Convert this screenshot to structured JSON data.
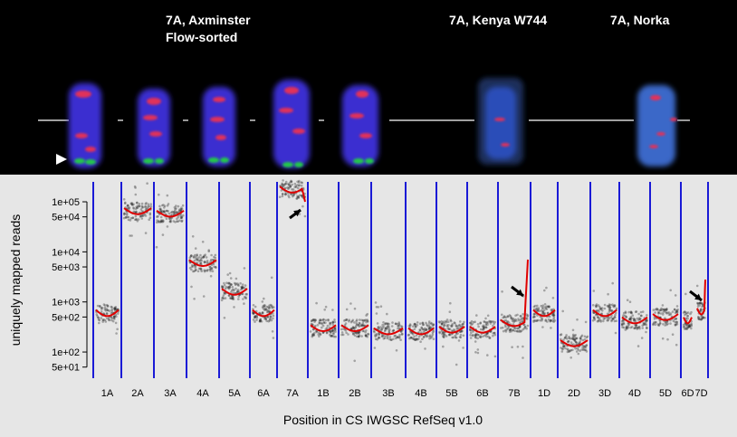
{
  "panel_titles": {
    "axminster_line1": "7A, Axminster",
    "axminster_line2": "Flow-sorted",
    "kenya": "7A, Kenya W744",
    "norka": "7A, Norka"
  },
  "colors": {
    "chromosome_body": "#3a2fd0",
    "fish_signal_red": "#e0305a",
    "fish_signal_green": "#22c84a",
    "divider_line": "#1a1ad6",
    "trend_line": "#e00000",
    "points": "#222222",
    "plot_background": "#e6e6e6",
    "image_background": "#000000"
  },
  "chart_data": {
    "type": "scatter",
    "ylabel": "uniquely mapped reads",
    "xlabel": "Position in CS IWGSC RefSeq v1.0",
    "y_scale": "log",
    "ylim": [
      30,
      250000
    ],
    "yticks": [
      {
        "label": "1e+05",
        "value": 100000
      },
      {
        "label": "5e+04",
        "value": 50000
      },
      {
        "label": "1e+04",
        "value": 10000
      },
      {
        "label": "5e+03",
        "value": 5000
      },
      {
        "label": "1e+03",
        "value": 1000
      },
      {
        "label": "5e+02",
        "value": 500
      },
      {
        "label": "1e+02",
        "value": 100
      },
      {
        "label": "5e+01",
        "value": 50
      }
    ],
    "categories": [
      "1A",
      "2A",
      "3A",
      "4A",
      "5A",
      "6A",
      "7A",
      "1B",
      "2B",
      "3B",
      "4B",
      "5B",
      "6B",
      "7B",
      "1D",
      "2D",
      "3D",
      "4D",
      "5D",
      "6D",
      "7D"
    ],
    "series": [
      {
        "values": [
          600,
          65000,
          58000,
          6000,
          1600,
          600,
          175000,
          300,
          300,
          260,
          260,
          280,
          280,
          380,
          600,
          150,
          600,
          430,
          500,
          430,
          650
        ]
      }
    ],
    "terminal_peaks": [
      {
        "category": "7A",
        "value": 100000
      },
      {
        "category": "7B",
        "value": 7000
      },
      {
        "category": "7D",
        "value": 2800
      }
    ],
    "legend": "none",
    "grid": false
  }
}
